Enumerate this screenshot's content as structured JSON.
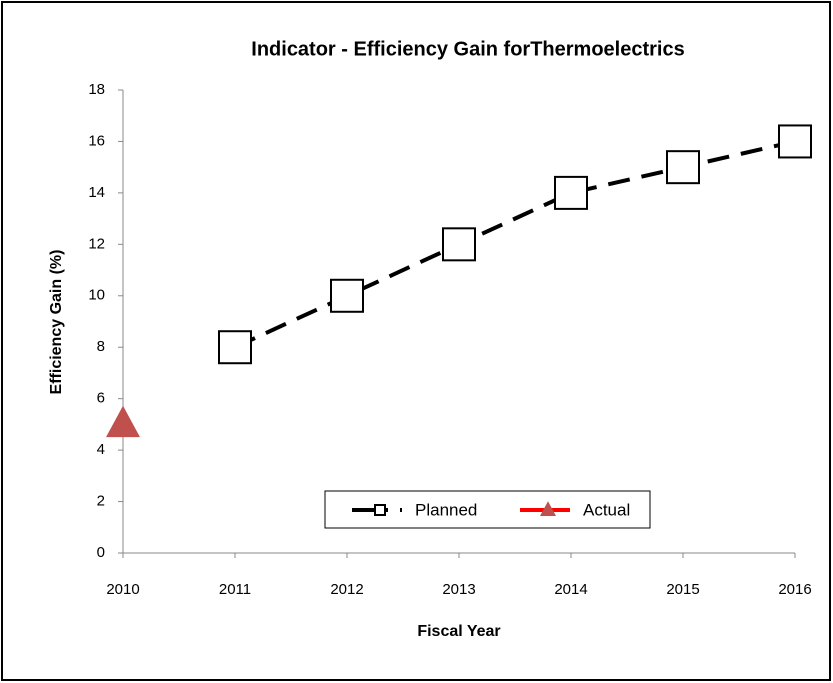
{
  "chart_data": {
    "type": "line",
    "title": "Indicator - Efficiency Gain forThermoelectrics",
    "x_label": "Fiscal Year",
    "y_label": "Efficiency Gain (%)",
    "x": [
      2010,
      2011,
      2012,
      2013,
      2014,
      2015,
      2016
    ],
    "xlim": [
      2010,
      2016
    ],
    "xticks": [
      2010,
      2011,
      2012,
      2013,
      2014,
      2015,
      2016
    ],
    "ylim": [
      0,
      18
    ],
    "yticks": [
      0,
      2,
      4,
      6,
      8,
      10,
      12,
      14,
      16,
      18
    ],
    "legend": "bottom",
    "series": [
      {
        "name": "Planned",
        "color": "#000000",
        "line_style": "dashed",
        "marker": "square",
        "values": [
          null,
          8,
          10,
          12,
          14,
          15,
          16
        ]
      },
      {
        "name": "Actual",
        "color": "#c0504d",
        "line_style": "solid",
        "marker": "triangle",
        "values": [
          5,
          null,
          null,
          null,
          null,
          null,
          null
        ]
      }
    ]
  }
}
